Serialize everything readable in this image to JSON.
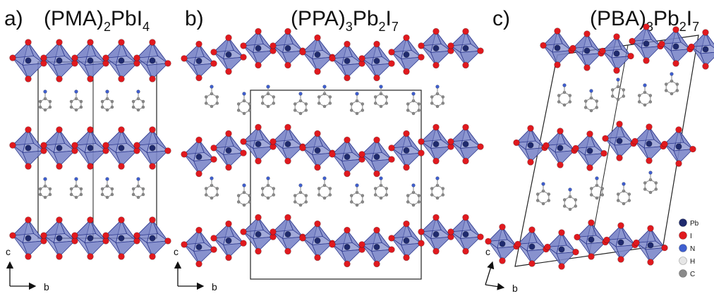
{
  "colors": {
    "octahedron_fill": "#7b86c9",
    "octahedron_edge": "#2f3a8f",
    "pb": "#1f2a6e",
    "iodine": "#e0191e",
    "nitrogen": "#3f5fcf",
    "hydrogen": "#e6e6e6",
    "carbon": "#8a8a8a",
    "bond": "#9a9a9a",
    "cell": "#222222"
  },
  "panels": [
    {
      "letter": "a)",
      "formula_parts": [
        "(PMA)",
        "2",
        "PbI",
        "4"
      ]
    },
    {
      "letter": "b)",
      "formula_parts": [
        "(PPA)",
        "3",
        "Pb",
        "2",
        "I",
        "7"
      ]
    },
    {
      "letter": "c)",
      "formula_parts": [
        "(PBA)",
        "3",
        "Pb",
        "2",
        "I",
        "7"
      ]
    }
  ],
  "axes": {
    "vertical": "c",
    "horizontal": "b"
  },
  "legend": [
    {
      "symbol": "Pb",
      "color_key": "pb"
    },
    {
      "symbol": "I",
      "color_key": "iodine"
    },
    {
      "symbol": "N",
      "color_key": "nitrogen"
    },
    {
      "symbol": "H",
      "color_key": "hydrogen"
    },
    {
      "symbol": "C",
      "color_key": "carbon"
    }
  ]
}
